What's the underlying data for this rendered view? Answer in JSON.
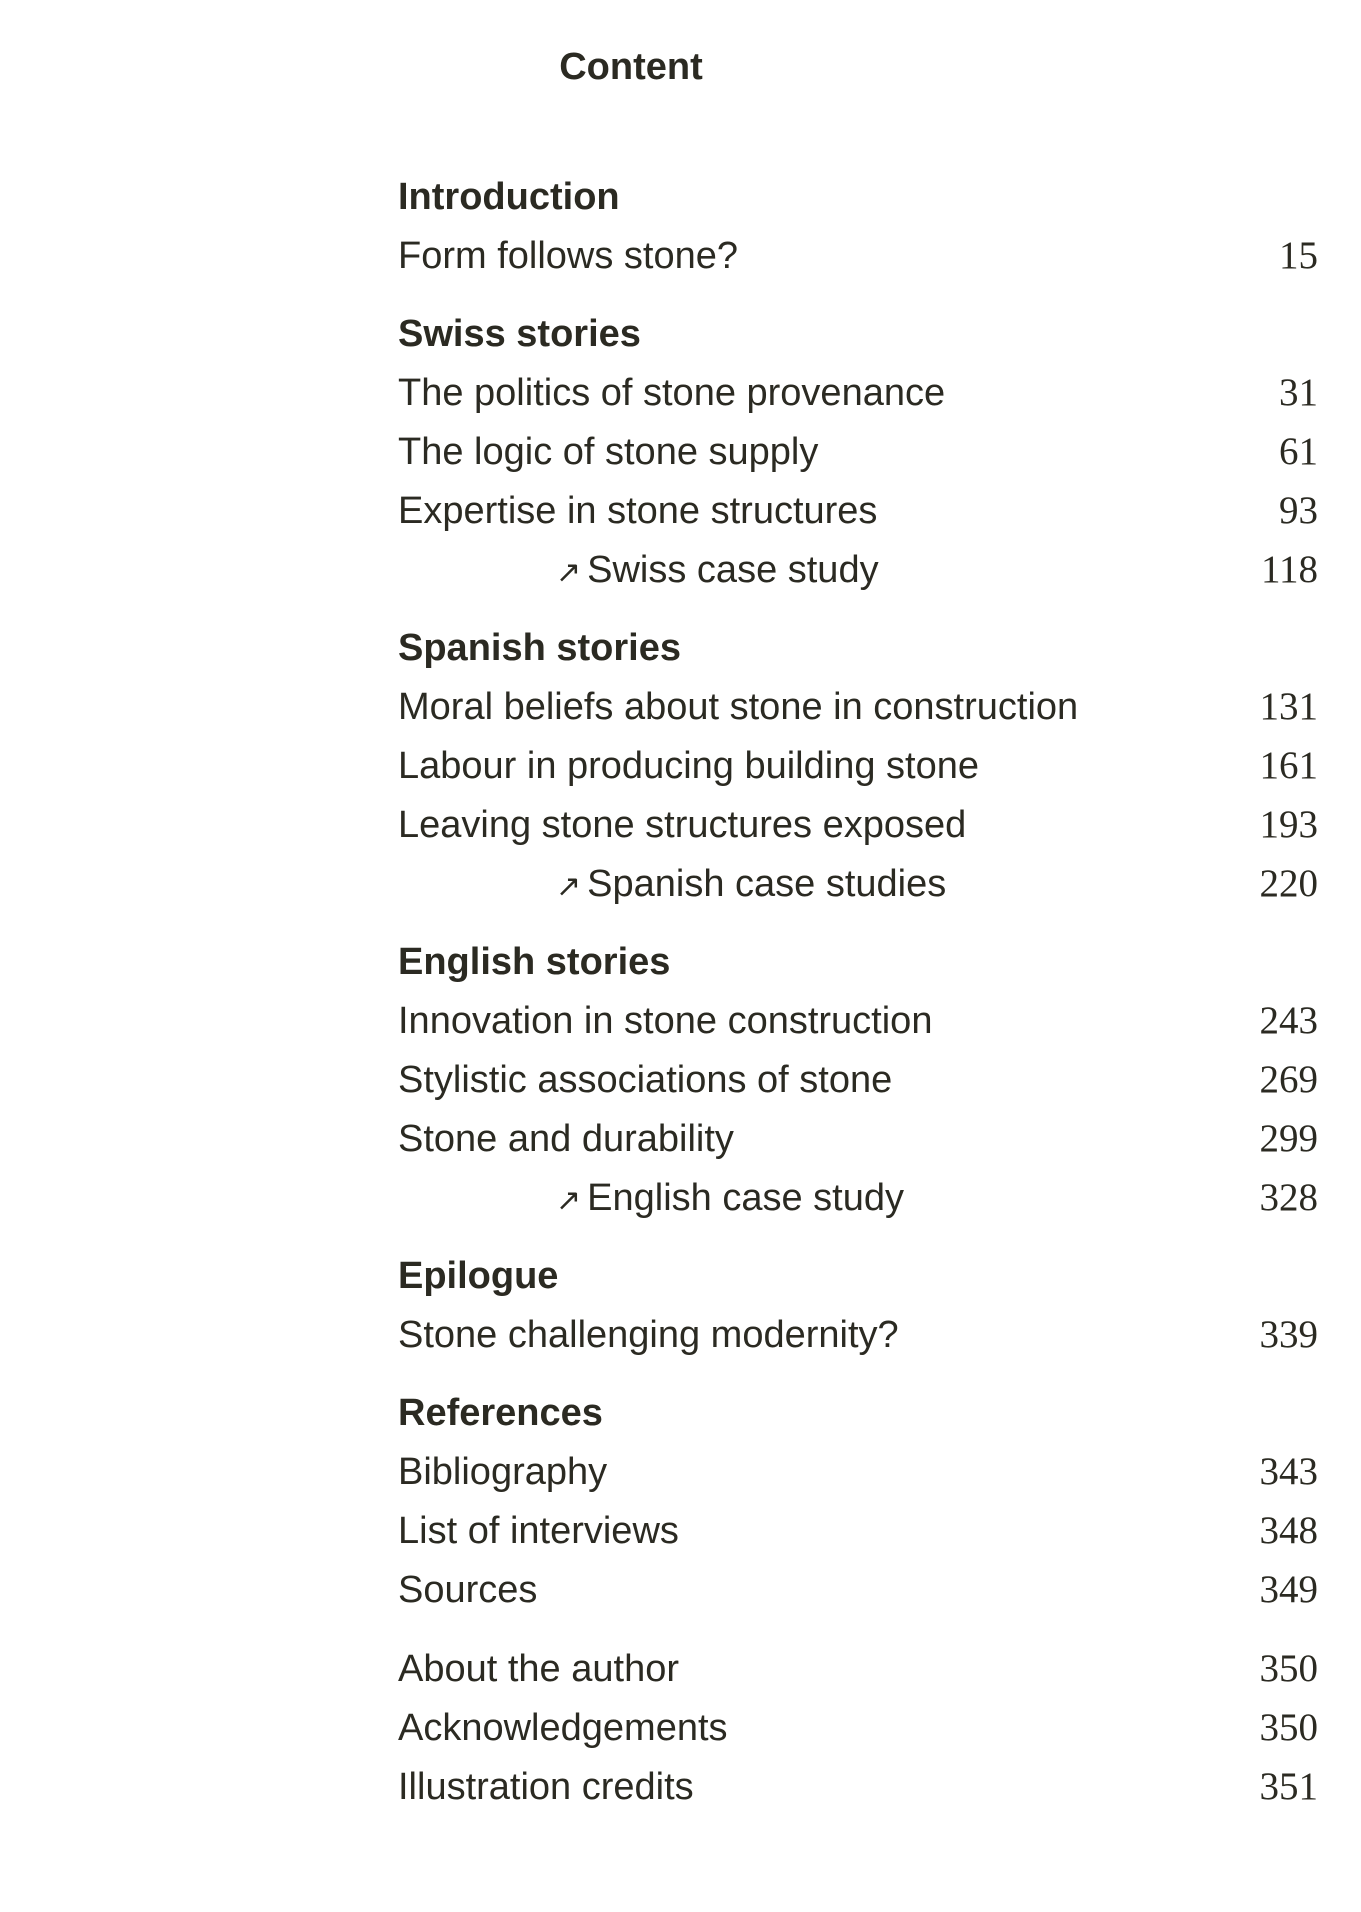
{
  "title": "Content",
  "sections": [
    {
      "heading": "Introduction",
      "entries": [
        {
          "label": "Form follows stone?",
          "page": "15",
          "sub": false
        }
      ]
    },
    {
      "heading": "Swiss stories",
      "entries": [
        {
          "label": "The politics of stone provenance",
          "page": "31",
          "sub": false
        },
        {
          "label": "The logic of stone supply",
          "page": "61",
          "sub": false
        },
        {
          "label": "Expertise in stone structures",
          "page": "93",
          "sub": false
        },
        {
          "label": "Swiss case study",
          "page": "118",
          "sub": true
        }
      ]
    },
    {
      "heading": "Spanish stories",
      "entries": [
        {
          "label": "Moral beliefs about stone in construction",
          "page": "131",
          "sub": false
        },
        {
          "label": "Labour in producing building stone",
          "page": "161",
          "sub": false
        },
        {
          "label": "Leaving stone structures exposed",
          "page": "193",
          "sub": false
        },
        {
          "label": "Spanish case studies",
          "page": "220",
          "sub": true
        }
      ]
    },
    {
      "heading": "English stories",
      "entries": [
        {
          "label": "Innovation in stone construction",
          "page": "243",
          "sub": false
        },
        {
          "label": "Stylistic associations of stone",
          "page": "269",
          "sub": false
        },
        {
          "label": "Stone and durability",
          "page": "299",
          "sub": false
        },
        {
          "label": "English case study",
          "page": "328",
          "sub": true
        }
      ]
    },
    {
      "heading": "Epilogue",
      "entries": [
        {
          "label": "Stone challenging modernity?",
          "page": "339",
          "sub": false
        }
      ]
    },
    {
      "heading": "References",
      "entries": [
        {
          "label": "Bibliography",
          "page": "343",
          "sub": false
        },
        {
          "label": "List of interviews",
          "page": "348",
          "sub": false
        },
        {
          "label": "Sources",
          "page": "349",
          "sub": false
        }
      ]
    },
    {
      "heading": "",
      "entries": [
        {
          "label": "About the author",
          "page": "350",
          "sub": false
        },
        {
          "label": "Acknowledgements",
          "page": "350",
          "sub": false
        },
        {
          "label": "Illustration credits",
          "page": "351",
          "sub": false
        }
      ]
    }
  ],
  "sub_icon": "north-east-arrow-icon",
  "colors": {
    "text": "#2b2a22",
    "background": "#ffffff"
  }
}
